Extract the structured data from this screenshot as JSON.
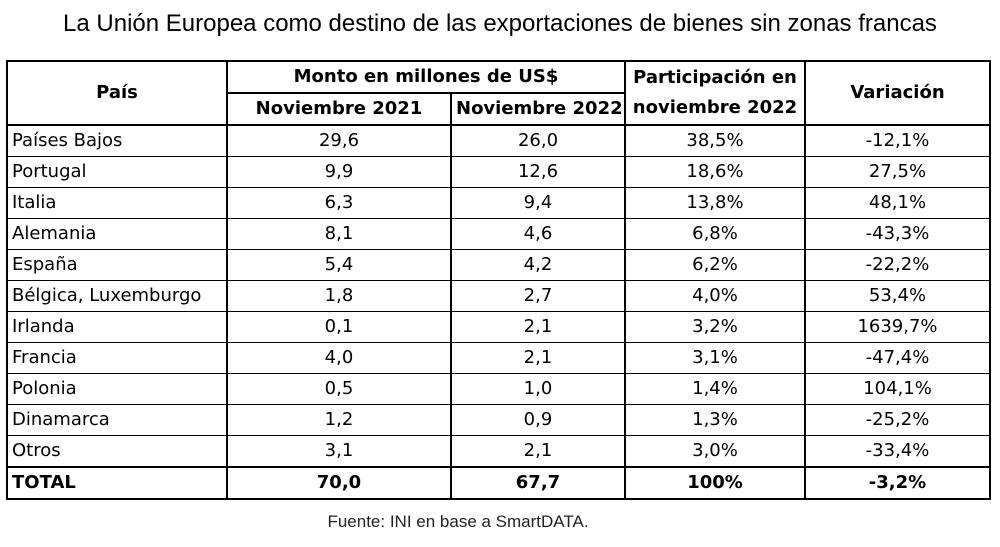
{
  "title": "La Unión Europea como destino de las exportaciones de bienes sin zonas francas",
  "table": {
    "headers": {
      "country": "País",
      "amount_group": "Monto en millones de US$",
      "nov2021": "Noviembre 2021",
      "nov2022": "Noviembre 2022",
      "share_line1": "Participación en",
      "share_line2": "noviembre 2022",
      "variation": "Variación"
    },
    "rows": [
      {
        "country": "Países Bajos",
        "nov2021": "29,6",
        "nov2022": "26,0",
        "share": "38,5%",
        "variation": "-12,1%"
      },
      {
        "country": "Portugal",
        "nov2021": "9,9",
        "nov2022": "12,6",
        "share": "18,6%",
        "variation": "27,5%"
      },
      {
        "country": "Italia",
        "nov2021": "6,3",
        "nov2022": "9,4",
        "share": "13,8%",
        "variation": "48,1%"
      },
      {
        "country": "Alemania",
        "nov2021": "8,1",
        "nov2022": "4,6",
        "share": "6,8%",
        "variation": "-43,3%"
      },
      {
        "country": "España",
        "nov2021": "5,4",
        "nov2022": "4,2",
        "share": "6,2%",
        "variation": "-22,2%"
      },
      {
        "country": "Bélgica, Luxemburgo",
        "nov2021": "1,8",
        "nov2022": "2,7",
        "share": "4,0%",
        "variation": "53,4%"
      },
      {
        "country": "Irlanda",
        "nov2021": "0,1",
        "nov2022": "2,1",
        "share": "3,2%",
        "variation": "1639,7%"
      },
      {
        "country": "Francia",
        "nov2021": "4,0",
        "nov2022": "2,1",
        "share": "3,1%",
        "variation": "-47,4%"
      },
      {
        "country": "Polonia",
        "nov2021": "0,5",
        "nov2022": "1,0",
        "share": "1,4%",
        "variation": "104,1%"
      },
      {
        "country": "Dinamarca",
        "nov2021": "1,2",
        "nov2022": "0,9",
        "share": "1,3%",
        "variation": "-25,2%"
      },
      {
        "country": "Otros",
        "nov2021": "3,1",
        "nov2022": "2,1",
        "share": "3,0%",
        "variation": "-33,4%"
      }
    ],
    "total": {
      "country": "TOTAL",
      "nov2021": "70,0",
      "nov2022": "67,7",
      "share": "100%",
      "variation": "-3,2%"
    }
  },
  "source": "Fuente: INI en base a SmartDATA."
}
